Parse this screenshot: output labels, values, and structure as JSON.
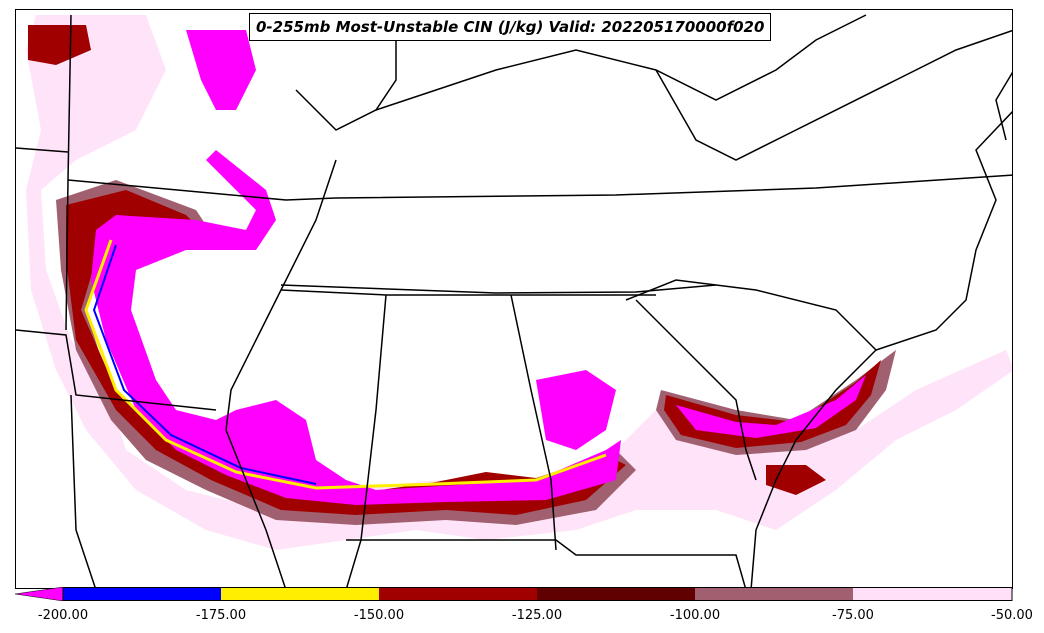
{
  "title": "0-255mb Most-Unstable CIN (J/kg) Valid: 202205170000f020",
  "colorbar": {
    "ticks": [
      "-200.00",
      "-175.00",
      "-150.00",
      "-125.00",
      "-100.00",
      "-75.00",
      "-50.00"
    ],
    "colors": [
      "#ff00ff",
      "#0000ff",
      "#ffee00",
      "#a00000",
      "#600000",
      "#a06070",
      "#ffe0f8"
    ]
  }
}
